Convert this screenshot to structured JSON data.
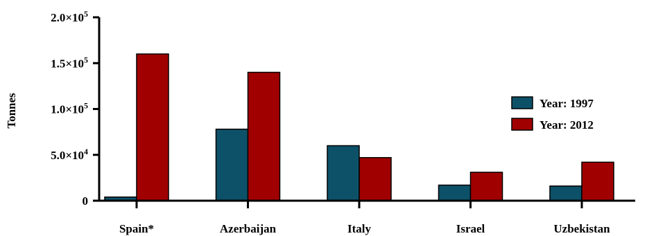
{
  "chart_data": {
    "type": "bar",
    "ylabel": "Tonnes",
    "categories": [
      "Spain*",
      "Azerbaijan",
      "Italy",
      "Israel",
      "Uzbekistan"
    ],
    "series": [
      {
        "name": "Year: 1997",
        "color": "#0d5169",
        "values": [
          4000,
          78000,
          60000,
          17000,
          16000
        ]
      },
      {
        "name": "Year: 2012",
        "color": "#a10000",
        "values": [
          160000,
          140000,
          47000,
          31000,
          42000
        ]
      }
    ],
    "ylim": [
      0,
      200000
    ],
    "yticks": [
      {
        "value": 0,
        "base": "0",
        "exp": ""
      },
      {
        "value": 50000,
        "base": "5.0×10",
        "exp": "4"
      },
      {
        "value": 100000,
        "base": "1.0×10",
        "exp": "5"
      },
      {
        "value": 150000,
        "base": "1.5×10",
        "exp": "5"
      },
      {
        "value": 200000,
        "base": "2.0×10",
        "exp": "5"
      }
    ],
    "legend_position": "right",
    "grid": false
  }
}
